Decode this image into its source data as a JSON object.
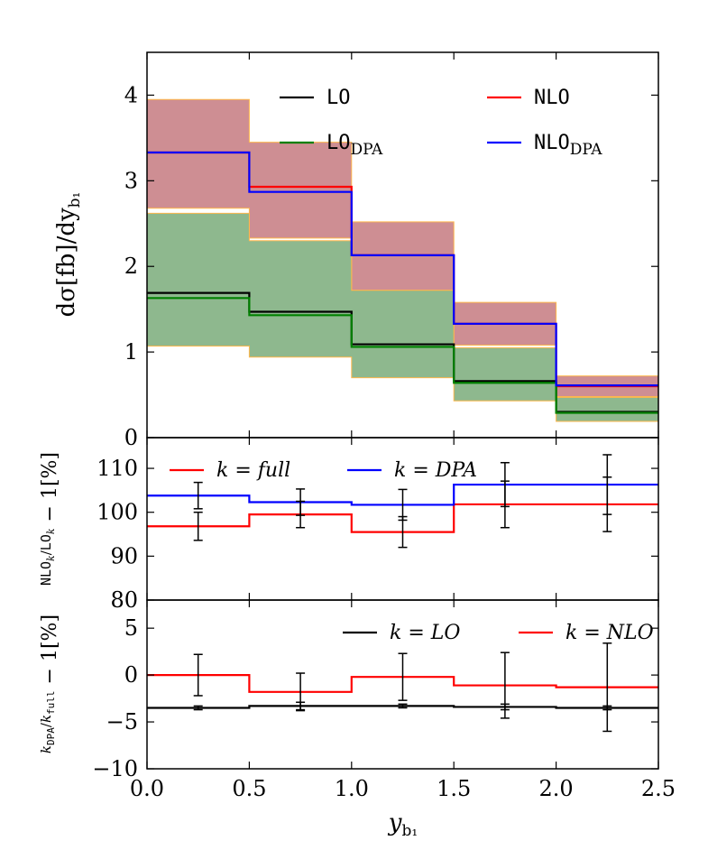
{
  "chart_data": {
    "type": "step",
    "x_label": "y_{b_1}",
    "bins": [
      0.0,
      0.5,
      1.0,
      1.5,
      2.0,
      2.5
    ],
    "x_ticks": [
      "0.0",
      "0.5",
      "1.0",
      "1.5",
      "2.0",
      "2.5"
    ],
    "colors": {
      "LO": "#000000",
      "NLO": "#ff0000",
      "LO_DPA": "#008000",
      "NLO_DPA": "#0000ff",
      "band_nlo": "#c57a80",
      "band_lo": "#7aac7a",
      "band_edge": "#ffb74d"
    },
    "panels": [
      {
        "id": "main",
        "y_label": "dσ[fb]/dy_{b_1}",
        "ylim": [
          0,
          4.5
        ],
        "y_ticks": [
          "0",
          "1",
          "2",
          "3",
          "4"
        ],
        "series": [
          {
            "key": "LO",
            "label": "LO",
            "values": [
              1.69,
              1.47,
              1.09,
              0.66,
              0.3
            ]
          },
          {
            "key": "NLO",
            "label": "NLO",
            "values": [
              3.33,
              2.93,
              2.13,
              1.33,
              0.6
            ]
          },
          {
            "key": "LO_DPA",
            "label": "LO",
            "sub": "DPA",
            "values": [
              1.63,
              1.43,
              1.06,
              0.64,
              0.29
            ]
          },
          {
            "key": "NLO_DPA",
            "label": "NLO",
            "sub": "DPA",
            "values": [
              3.33,
              2.87,
              2.13,
              1.33,
              0.61
            ]
          }
        ],
        "bands": [
          {
            "key": "NLO",
            "lower": [
              2.68,
              2.33,
              1.72,
              1.08,
              0.48
            ],
            "upper": [
              3.95,
              3.45,
              2.52,
              1.58,
              0.72
            ]
          },
          {
            "key": "LO",
            "lower": [
              1.07,
              0.94,
              0.7,
              0.43,
              0.19
            ],
            "upper": [
              2.62,
              2.3,
              1.72,
              1.05,
              0.47
            ]
          }
        ]
      },
      {
        "id": "ratio1",
        "y_label": "NLO_k/LO_k − 1[%]",
        "ylim": [
          80,
          117
        ],
        "y_ticks": [
          "80",
          "90",
          "100",
          "110"
        ],
        "series": [
          {
            "key": "NLO",
            "label": "k = full",
            "values": [
              96.8,
              99.5,
              95.5,
              101.8,
              101.8
            ],
            "errors": [
              3.2,
              3.0,
              3.5,
              5.3,
              6.2
            ]
          },
          {
            "key": "NLO_DPA",
            "label": "k = DPA",
            "values": [
              103.8,
              102.3,
              101.7,
              106.3,
              106.3
            ],
            "errors": [
              3.0,
              3.0,
              3.5,
              5.0,
              6.8
            ]
          }
        ]
      },
      {
        "id": "ratio2",
        "y_label": "k_DPA/k_full − 1[%]",
        "ylim": [
          -10,
          8
        ],
        "y_ticks": [
          "−10",
          "−5",
          "0",
          "5"
        ],
        "series": [
          {
            "key": "LO",
            "label": "k = LO",
            "values": [
              -3.5,
              -3.3,
              -3.3,
              -3.4,
              -3.5
            ],
            "errors": [
              0.2,
              0.4,
              0.2,
              0.3,
              0.2
            ]
          },
          {
            "key": "NLO",
            "label": "k = NLO",
            "values": [
              0.0,
              -1.8,
              -0.2,
              -1.1,
              -1.3
            ],
            "errors": [
              2.2,
              2.0,
              2.5,
              3.5,
              4.7
            ]
          }
        ]
      }
    ]
  }
}
